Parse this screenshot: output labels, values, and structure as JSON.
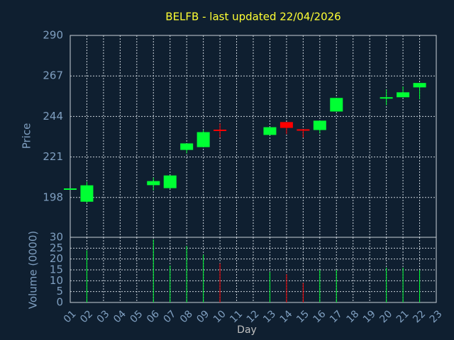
{
  "chart_data": {
    "type": "candlestick",
    "title": "BELFB - last updated 22/04/2026",
    "y_label": "Price",
    "y2_label": "Volume (0000)",
    "x_label": "Day",
    "categories": [
      "01",
      "02",
      "03",
      "04",
      "05",
      "06",
      "07",
      "08",
      "09",
      "10",
      "11",
      "12",
      "13",
      "14",
      "15",
      "16",
      "17",
      "18",
      "19",
      "20",
      "21",
      "22",
      "23"
    ],
    "open": [
      202.5,
      195.6,
      null,
      null,
      null,
      205,
      203.3,
      225,
      226.6,
      236.2,
      null,
      null,
      233.5,
      240.8,
      236.4,
      236.3,
      246.8,
      null,
      null,
      254.4,
      254.9,
      260.5,
      null
    ],
    "high": [
      203,
      206.9,
      null,
      null,
      null,
      209.3,
      210.5,
      228.7,
      236.3,
      240,
      null,
      null,
      237.9,
      240.8,
      236.6,
      241.6,
      254.5,
      null,
      null,
      259.3,
      261,
      263,
      null
    ],
    "low": [
      202.5,
      195,
      null,
      null,
      null,
      202,
      203,
      223,
      226.6,
      232,
      null,
      null,
      233.5,
      234,
      232,
      234.3,
      246.8,
      null,
      null,
      250.4,
      254.9,
      253.7,
      null
    ],
    "close": [
      203,
      204.9,
      null,
      null,
      null,
      207.3,
      210.5,
      228.7,
      235.1,
      236,
      null,
      null,
      237.9,
      237.5,
      236.2,
      241.6,
      254.5,
      null,
      null,
      254.6,
      257.7,
      263,
      null
    ],
    "volume": [
      null,
      24,
      null,
      null,
      null,
      29,
      17,
      26,
      22,
      18,
      null,
      null,
      14,
      13,
      9,
      15,
      15,
      null,
      null,
      16,
      16,
      15,
      null
    ],
    "up_color": "#00ff33",
    "down_color": "#ff0000",
    "ylim": [
      175.4,
      290
    ],
    "yticks": [
      198,
      221,
      244,
      267,
      290
    ],
    "y2lim": [
      0,
      30
    ],
    "y2ticks": [
      0,
      5,
      10,
      15,
      20,
      25,
      30
    ],
    "grid": true
  }
}
